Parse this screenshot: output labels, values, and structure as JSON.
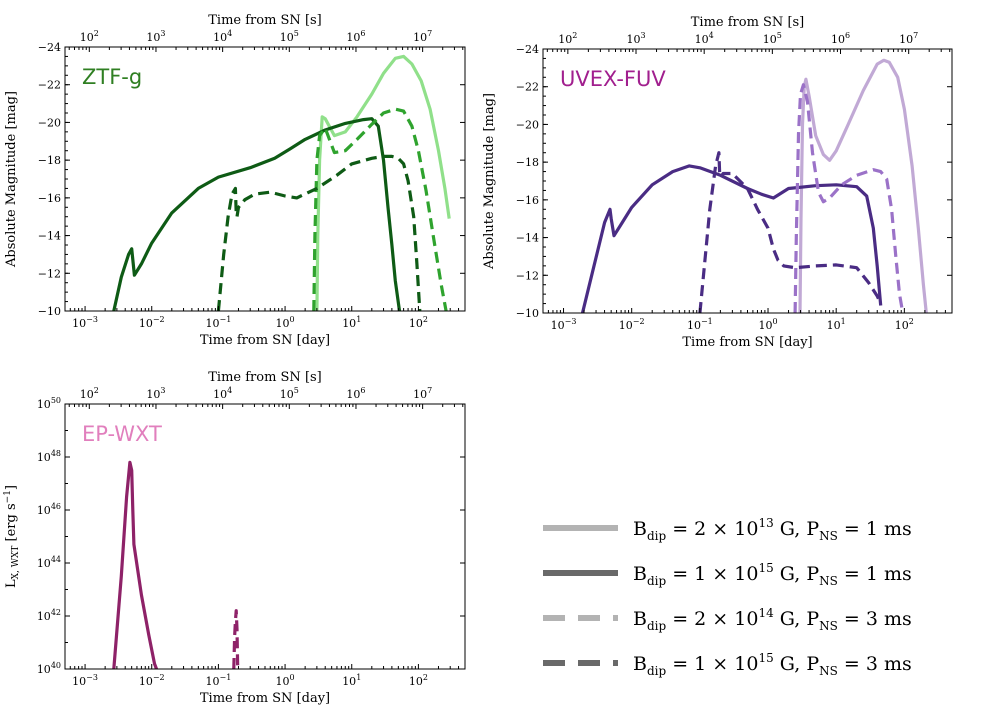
{
  "colors": {
    "ztf_light": "#90e08a",
    "ztf_mid": "#2fa32e",
    "ztf_dark": "#0e5b15",
    "uvex_light": "#c1a9d5",
    "uvex_mid": "#9b72c8",
    "uvex_dark": "#4a2c84",
    "ep": "#8e2268",
    "ztf_text": "#2f7f22",
    "uvex_text": "#a11f8e",
    "ep_text": "#e17fbd",
    "legend_light": "#b3b3b3",
    "legend_dark": "#696969"
  },
  "chart_data": [
    {
      "type": "line",
      "panel_label": "ZTF-g",
      "xlabel": "Time from SN [day]",
      "ylabel": "Absolute Magnitude [mag]",
      "top_xlabel": "Time from SN [s]",
      "x_scale": "log",
      "xlim": [
        0.0005,
        500
      ],
      "ylim": [
        -10,
        -24
      ],
      "x_ticks": [
        "10^-3",
        "10^-2",
        "10^-1",
        "10^0",
        "10^1",
        "10^2"
      ],
      "y_ticks": [
        "-24",
        "-22",
        "-20",
        "-18",
        "-16",
        "-14",
        "-12",
        "-10"
      ],
      "top_ticks": [
        "10^2",
        "10^3",
        "10^4",
        "10^5",
        "10^6",
        "10^7"
      ],
      "series": [
        {
          "name": "B=2e13 G, P=1 ms",
          "shade": "light",
          "style": "solid",
          "x": [
            3.0,
            3.1,
            3.3,
            3.6,
            4.0,
            5.5,
            8,
            12,
            20,
            30,
            45,
            60,
            80,
            110,
            150,
            200,
            250,
            290
          ],
          "y": [
            -10,
            -14,
            -18,
            -20.3,
            -20.2,
            -19.3,
            -19.5,
            -20.3,
            -21.5,
            -22.6,
            -23.4,
            -23.5,
            -23.1,
            -22.2,
            -20.7,
            -18.5,
            -16.5,
            -14.9
          ]
        },
        {
          "name": "B=1e15 G, P=1 ms",
          "shade": "dark",
          "style": "solid",
          "x": [
            0.0027,
            0.0035,
            0.0045,
            0.005,
            0.0055,
            0.007,
            0.01,
            0.02,
            0.05,
            0.1,
            0.3,
            0.7,
            1.2,
            2,
            4,
            8,
            15,
            20,
            25,
            30,
            35,
            40,
            45,
            52
          ],
          "y": [
            -10,
            -11.8,
            -13.0,
            -13.3,
            -11.9,
            -12.5,
            -13.6,
            -15.2,
            -16.5,
            -17.1,
            -17.6,
            -18.1,
            -18.6,
            -19.1,
            -19.6,
            -19.95,
            -20.15,
            -20.2,
            -19.8,
            -18.0,
            -15.5,
            -13.5,
            -11.6,
            -10
          ]
        },
        {
          "name": "B=2e14 G, P=3 ms",
          "shade": "mid",
          "style": "dashed",
          "x": [
            2.7,
            2.8,
            3.0,
            3.3,
            4.0,
            5.5,
            8,
            12,
            20,
            30,
            45,
            60,
            80,
            100,
            130,
            170,
            220,
            260
          ],
          "y": [
            -10,
            -14,
            -18,
            -19.3,
            -19.7,
            -18.4,
            -18.5,
            -19.1,
            -19.9,
            -20.5,
            -20.7,
            -20.6,
            -19.8,
            -18.5,
            -16.4,
            -13.8,
            -11.4,
            -10
          ]
        },
        {
          "name": "B=1e15 G, P=3 ms",
          "shade": "dark",
          "style": "dashed",
          "x": [
            0.1,
            0.12,
            0.14,
            0.16,
            0.18,
            0.185,
            0.19,
            0.2,
            0.25,
            0.35,
            0.6,
            1.0,
            1.5,
            3,
            6,
            10,
            20,
            30,
            40,
            50,
            60,
            70,
            85,
            95,
            105
          ],
          "y": [
            -10,
            -13.0,
            -15.0,
            -16.2,
            -16.5,
            -15.2,
            -15.0,
            -15.5,
            -15.9,
            -16.2,
            -16.3,
            -16.1,
            -16.0,
            -16.5,
            -17.2,
            -17.8,
            -18.1,
            -18.2,
            -18.2,
            -18.1,
            -17.8,
            -16.9,
            -15.0,
            -12.5,
            -10
          ]
        }
      ]
    },
    {
      "type": "line",
      "panel_label": "UVEX-FUV",
      "xlabel": "Time from SN [day]",
      "ylabel": "Absolute Magnitude [mag]",
      "top_xlabel": "Time from SN [s]",
      "x_scale": "log",
      "xlim": [
        0.0005,
        500
      ],
      "ylim": [
        -10,
        -24
      ],
      "x_ticks": [
        "10^-3",
        "10^-2",
        "10^-1",
        "10^0",
        "10^1",
        "10^2"
      ],
      "y_ticks": [
        "-24",
        "-22",
        "-20",
        "-18",
        "-16",
        "-14",
        "-12",
        "-10"
      ],
      "top_ticks": [
        "10^2",
        "10^3",
        "10^4",
        "10^5",
        "10^6",
        "10^7"
      ],
      "series": [
        {
          "name": "B=2e13 G, P=1 ms",
          "shade": "light",
          "style": "solid",
          "x": [
            2.95,
            3.05,
            3.2,
            3.4,
            3.6,
            4.0,
            5.0,
            6.5,
            8,
            10,
            15,
            25,
            40,
            50,
            60,
            80,
            100,
            130,
            160,
            190,
            210
          ],
          "y": [
            -10,
            -15,
            -20,
            -22,
            -22.4,
            -21.5,
            -19.4,
            -18.4,
            -18.1,
            -18.6,
            -20.0,
            -21.8,
            -23.2,
            -23.4,
            -23.3,
            -22.5,
            -20.8,
            -17.8,
            -14.5,
            -11.5,
            -10
          ]
        },
        {
          "name": "B=1e15 G, P=1 ms",
          "shade": "dark",
          "style": "solid",
          "x": [
            0.0019,
            0.0028,
            0.004,
            0.0048,
            0.005,
            0.0055,
            0.007,
            0.01,
            0.02,
            0.04,
            0.07,
            0.1,
            0.2,
            0.5,
            0.8,
            1.2,
            2,
            5,
            10,
            20,
            28,
            35,
            40,
            45
          ],
          "y": [
            -10,
            -12.5,
            -14.8,
            -15.5,
            -15.0,
            -14.1,
            -14.7,
            -15.6,
            -16.8,
            -17.5,
            -17.8,
            -17.7,
            -17.3,
            -16.6,
            -16.3,
            -16.1,
            -16.6,
            -16.75,
            -16.8,
            -16.7,
            -16.2,
            -14.5,
            -12.5,
            -10.4
          ]
        },
        {
          "name": "B=2e14 G, P=3 ms",
          "shade": "mid",
          "style": "dashed",
          "x": [
            2.5,
            2.6,
            2.8,
            3.0,
            3.3,
            3.8,
            4.5,
            5.5,
            6.5,
            8,
            12,
            20,
            35,
            45,
            55,
            65,
            75,
            85,
            95
          ],
          "y": [
            -10,
            -14,
            -19.5,
            -21.6,
            -22.1,
            -21.2,
            -18.5,
            -16.4,
            -15.9,
            -16.1,
            -16.8,
            -17.3,
            -17.6,
            -17.5,
            -17.1,
            -15.5,
            -13.0,
            -11.0,
            -10
          ]
        },
        {
          "name": "B=1e15 G, P=3 ms",
          "shade": "dark",
          "style": "dashed",
          "x": [
            0.1,
            0.12,
            0.14,
            0.17,
            0.19,
            0.195,
            0.2,
            0.22,
            0.3,
            0.5,
            0.7,
            1.0,
            1.2,
            1.4,
            1.7,
            2.5,
            5,
            10,
            20,
            30,
            40,
            45
          ],
          "y": [
            -10,
            -13.0,
            -15.5,
            -17.8,
            -18.5,
            -17.5,
            -17.2,
            -17.4,
            -17.4,
            -16.6,
            -15.5,
            -14.5,
            -13.4,
            -12.8,
            -12.5,
            -12.4,
            -12.5,
            -12.55,
            -12.4,
            -11.6,
            -10.9,
            -10.5
          ]
        }
      ]
    },
    {
      "type": "line",
      "panel_label": "EP-WXT",
      "xlabel": "Time from SN [day]",
      "ylabel": "L_X,WXT [erg s^-1]",
      "top_xlabel": "Time from SN [s]",
      "x_scale": "log",
      "y_scale": "log",
      "xlim": [
        0.0005,
        500
      ],
      "ylim": [
        40,
        50
      ],
      "x_ticks": [
        "10^-3",
        "10^-2",
        "10^-1",
        "10^0",
        "10^1",
        "10^2"
      ],
      "y_ticks": [
        "10^40",
        "10^42",
        "10^44",
        "10^46",
        "10^48",
        "10^50"
      ],
      "top_ticks": [
        "10^2",
        "10^3",
        "10^4",
        "10^5",
        "10^6",
        "10^7"
      ],
      "series": [
        {
          "name": "B=1e15 G, P=1 ms",
          "shade": "ep",
          "style": "solid",
          "x": [
            0.0027,
            0.0035,
            0.0042,
            0.0047,
            0.005,
            0.0052,
            0.0054,
            0.007,
            0.009,
            0.011,
            0.0118
          ],
          "y": [
            40,
            43.5,
            46.5,
            47.8,
            47.5,
            46,
            44.7,
            42.8,
            41.3,
            40.2,
            40
          ]
        },
        {
          "name": "B=1e15 G, P=3 ms",
          "shade": "ep",
          "style": "dashed",
          "x": [
            0.17,
            0.175,
            0.18,
            0.185,
            0.19,
            0.195
          ],
          "y": [
            40,
            41.2,
            41.8,
            42.2,
            41.5,
            40
          ]
        }
      ]
    }
  ],
  "legend": {
    "entries": [
      {
        "style": "solid",
        "shade": "light",
        "B_coef": "2",
        "B_exp": "13",
        "P": "1"
      },
      {
        "style": "solid",
        "shade": "dark",
        "B_coef": "1",
        "B_exp": "15",
        "P": "1"
      },
      {
        "style": "dashed",
        "shade": "light",
        "B_coef": "2",
        "B_exp": "14",
        "P": "3"
      },
      {
        "style": "dashed",
        "shade": "dark",
        "B_coef": "1",
        "B_exp": "15",
        "P": "3"
      }
    ]
  }
}
